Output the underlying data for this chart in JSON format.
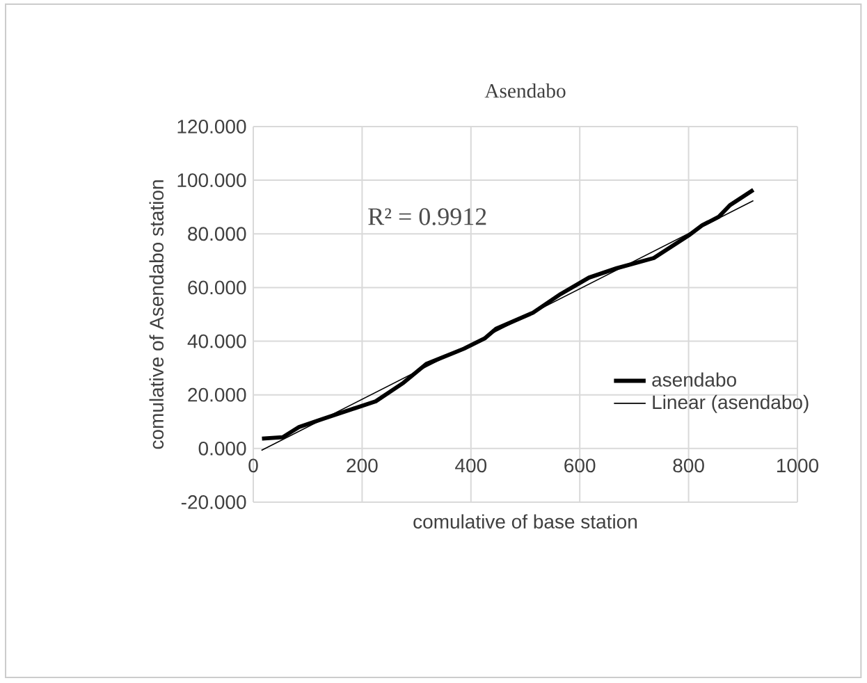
{
  "chart_data": {
    "type": "line",
    "title": "Asendabo",
    "xlabel": "comulative of base station",
    "ylabel": "comulative of Asendabo station",
    "annotations": [
      "R² = 0.9912"
    ],
    "series": [
      {
        "name": "asendabo",
        "color": "#000000",
        "x": [
          16,
          54,
          84,
          127,
          225,
          276,
          318,
          387,
          425,
          446,
          514,
          565,
          617,
          668,
          736,
          800,
          825,
          855,
          876,
          919
        ],
        "values": [
          3.7,
          4.2,
          8,
          11,
          17.6,
          24.5,
          31.5,
          37.2,
          41,
          44.6,
          50.6,
          57.6,
          63.7,
          67.2,
          71,
          79.4,
          83.2,
          86.3,
          90.7,
          96.4
        ]
      },
      {
        "name": "Linear (asendabo)",
        "color": "#000000",
        "type": "line",
        "x": [
          15,
          919
        ],
        "values": [
          -0.7,
          92.4
        ]
      }
    ],
    "xlim": [
      0,
      1000
    ],
    "xticks": [
      0,
      200,
      400,
      600,
      800,
      1000
    ],
    "ylim": [
      -20,
      120
    ],
    "yticks": [
      {
        "value": -20,
        "label": "-20.000"
      },
      {
        "value": 0,
        "label": "0.000"
      },
      {
        "value": 20,
        "label": "20.000"
      },
      {
        "value": 40,
        "label": "40.000"
      },
      {
        "value": 60,
        "label": "60.000"
      },
      {
        "value": 80,
        "label": "80.000"
      },
      {
        "value": 100,
        "label": "100.000"
      },
      {
        "value": 120,
        "label": "120.000"
      }
    ],
    "grid": true,
    "legend": "right",
    "marker": "none"
  }
}
